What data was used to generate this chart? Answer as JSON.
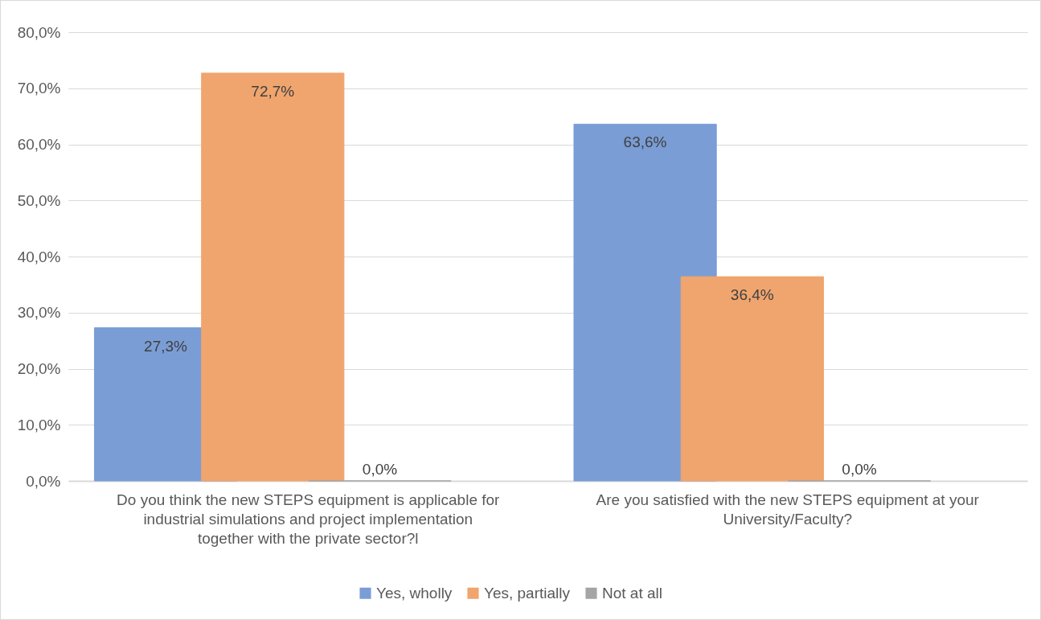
{
  "chart_data": {
    "type": "bar",
    "categories": [
      "Do you think the new STEPS equipment is applicable for industrial simulations and project implementation together with the private sector?l",
      "Are you satisfied with the new STEPS equipment at your University/Faculty?"
    ],
    "series": [
      {
        "name": "Yes, wholly",
        "color": "#7a9dd6",
        "values": [
          27.3,
          63.6
        ],
        "value_labels": [
          "27,3%",
          "63,6%"
        ]
      },
      {
        "name": "Yes, partially",
        "color": "#f0a46e",
        "values": [
          72.7,
          36.4
        ],
        "value_labels": [
          "72,7%",
          "36,4%"
        ]
      },
      {
        "name": "Not at all",
        "color": "#a5a5a5",
        "values": [
          0,
          0
        ],
        "value_labels": [
          "0,0%",
          "0,0%"
        ]
      }
    ],
    "ylim": [
      0,
      80
    ],
    "yticks": [
      {
        "value": 0,
        "label": "0,0%"
      },
      {
        "value": 10,
        "label": "10,0%"
      },
      {
        "value": 20,
        "label": "20,0%"
      },
      {
        "value": 30,
        "label": "30,0%"
      },
      {
        "value": 40,
        "label": "40,0%"
      },
      {
        "value": 50,
        "label": "50,0%"
      },
      {
        "value": 60,
        "label": "60,0%"
      },
      {
        "value": 70,
        "label": "70,0%"
      },
      {
        "value": 80,
        "label": "80,0%"
      }
    ],
    "grid": "y",
    "legend": "bottom"
  }
}
